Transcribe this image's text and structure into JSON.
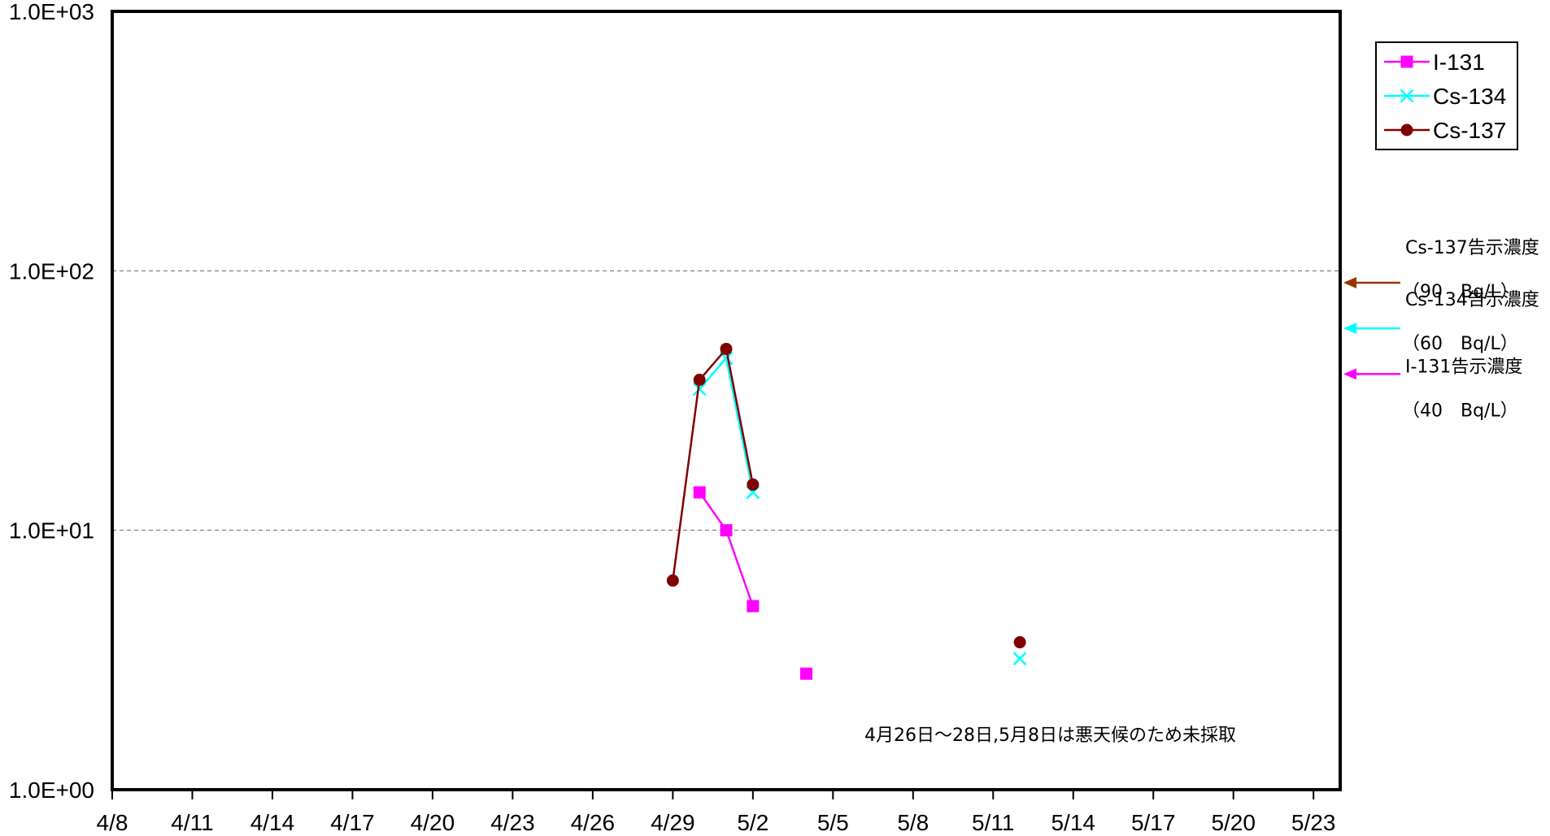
{
  "chart_data": {
    "type": "line",
    "yscale": "log",
    "ylim": [
      1,
      1000
    ],
    "yticks": [
      {
        "value": 1000,
        "label": "1.0E+03"
      },
      {
        "value": 100,
        "label": "1.0E+02"
      },
      {
        "value": 10,
        "label": "1.0E+01"
      },
      {
        "value": 1,
        "label": "1.0E+00"
      }
    ],
    "xlim": [
      "4/8",
      "5/24"
    ],
    "xticks": [
      "4/8",
      "4/11",
      "4/14",
      "4/17",
      "4/20",
      "4/23",
      "4/26",
      "4/29",
      "5/2",
      "5/5",
      "5/8",
      "5/11",
      "5/14",
      "5/17",
      "5/20",
      "5/23"
    ],
    "grid_major_y": true,
    "legend_position": "top-right",
    "series": [
      {
        "name": "I-131",
        "color": "#ff00ff",
        "marker": "square",
        "points": [
          {
            "x": "4/30",
            "y": 14,
            "connected": true
          },
          {
            "x": "5/1",
            "y": 10,
            "connected": true
          },
          {
            "x": "5/2",
            "y": 5.1,
            "connected": true
          },
          {
            "x": "5/4",
            "y": 2.8,
            "connected": false
          }
        ]
      },
      {
        "name": "Cs-134",
        "color": "#00ffff",
        "marker": "x",
        "points": [
          {
            "x": "4/30",
            "y": 35,
            "connected": true
          },
          {
            "x": "5/1",
            "y": 46,
            "connected": true
          },
          {
            "x": "5/2",
            "y": 14,
            "connected": true
          },
          {
            "x": "5/12",
            "y": 3.2,
            "connected": false
          }
        ]
      },
      {
        "name": "Cs-137",
        "color": "#800000",
        "marker": "circle",
        "points": [
          {
            "x": "4/29",
            "y": 6.4,
            "connected": true
          },
          {
            "x": "4/30",
            "y": 38,
            "connected": true
          },
          {
            "x": "5/1",
            "y": 50,
            "connected": true
          },
          {
            "x": "5/2",
            "y": 15,
            "connected": true
          },
          {
            "x": "5/12",
            "y": 3.7,
            "connected": false
          }
        ]
      }
    ],
    "limits": [
      {
        "name_line": "Cs-137告示濃度",
        "value_line": "（90　Bq/L）",
        "value": 90,
        "color": "#993300"
      },
      {
        "name_line": "Cs-134告示濃度",
        "value_line": "（60　Bq/L）",
        "value": 60,
        "color": "#00ffff"
      },
      {
        "name_line": "I-131告示濃度",
        "value_line": "（40　Bq/L）",
        "value": 40,
        "color": "#ff00ff"
      }
    ],
    "note": "4月26日～28日,5月8日は悪天候のため未採取"
  }
}
